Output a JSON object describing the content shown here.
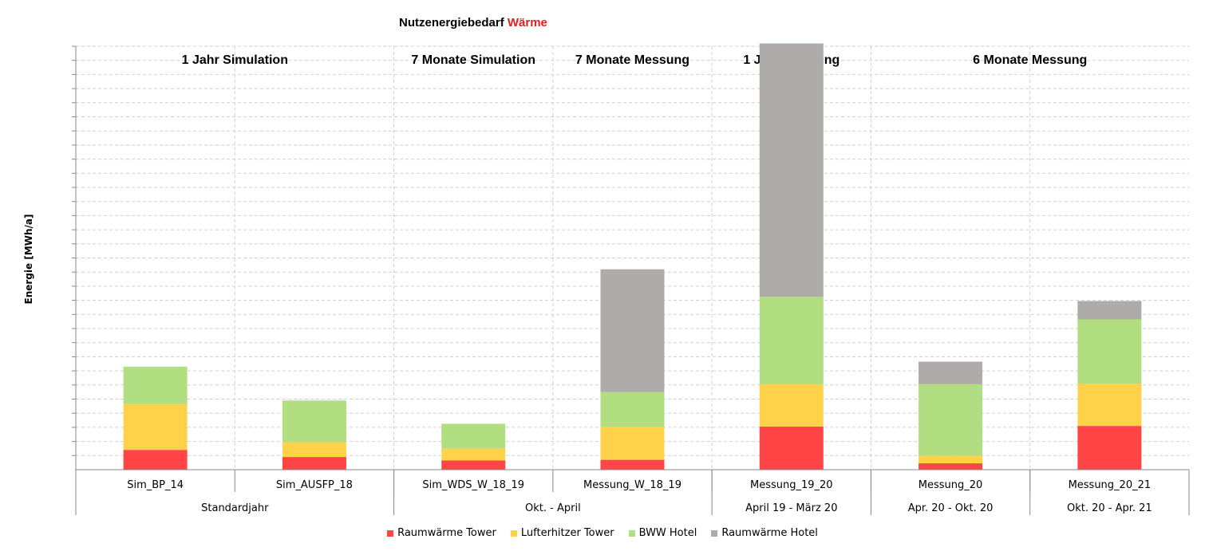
{
  "title": {
    "prefix": "Nutzenergiebedarf ",
    "accent": "Wärme",
    "accent_color": "#e02020"
  },
  "chart_data": {
    "type": "bar",
    "stacked": true,
    "title": "Nutzenergiebedarf Wärme",
    "ylabel": "Energie [MWh/a]",
    "categories": [
      "Sim_BP_14",
      "Sim_AUSFP_18",
      "Sim_WDS_W_18_19",
      "Messung_W_18_19",
      "Messung_19_20",
      "Messung_20",
      "Messung_20_21"
    ],
    "group_labels": [
      {
        "label": "Standardjahr",
        "span": 2
      },
      {
        "label": "Okt. - April",
        "span": 2
      },
      {
        "label": "April 19 - März 20",
        "span": 1
      },
      {
        "label": "Apr. 20 - Okt. 20",
        "span": 1
      },
      {
        "label": "Okt. 20 - Apr. 21",
        "span": 1
      }
    ],
    "section_labels": [
      {
        "label": "1 Jahr Simulation",
        "span": 2
      },
      {
        "label": "7 Monate Simulation",
        "span": 1
      },
      {
        "label": "7 Monate Messung",
        "span": 1
      },
      {
        "label": "1 Jahr Messung",
        "span": 1
      },
      {
        "label": "6 Monate Messung",
        "span": 2
      }
    ],
    "series": [
      {
        "name": "Raumwärme Tower",
        "color": "#ff4545",
        "values": [
          1.4,
          0.9,
          0.65,
          0.7,
          3.05,
          0.45,
          3.1
        ]
      },
      {
        "name": "Lufterhitzer Tower",
        "color": "#ffd24a",
        "values": [
          3.25,
          1.05,
          0.85,
          2.35,
          3.0,
          0.55,
          3.0
        ]
      },
      {
        "name": "BWW Hotel",
        "color": "#b0de80",
        "values": [
          2.65,
          2.95,
          1.75,
          2.45,
          6.2,
          5.05,
          4.55
        ]
      },
      {
        "name": "Raumwärme Hotel",
        "color": "#afabab",
        "values": [
          0,
          0,
          0,
          8.7,
          17.95,
          1.6,
          1.3
        ]
      }
    ],
    "ylim": [
      0,
      30
    ],
    "y_ticks_shown": false,
    "grid": true,
    "legend": "bottom"
  }
}
